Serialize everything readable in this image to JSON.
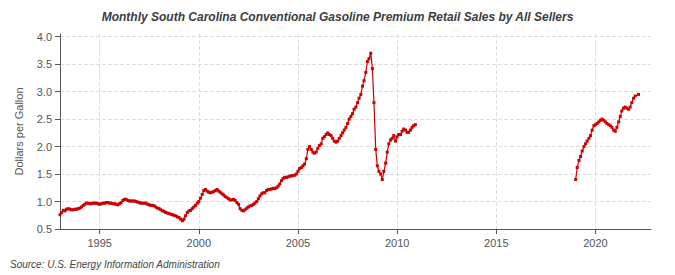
{
  "chart_data": {
    "type": "line",
    "title": "Monthly South Carolina Conventional Gasoline Premium Retail Sales by All Sellers",
    "ylabel": "Dollars per Gallon",
    "annotation": "Source: U.S. Energy Information Administration",
    "color": "#cc0000",
    "marker": "square",
    "line_style": "solid",
    "grid": true,
    "xlim": [
      1993.0,
      2022.8
    ],
    "xticks": [
      1995,
      2000,
      2005,
      2010,
      2015,
      2020
    ],
    "ylim": [
      0.5,
      4.05
    ],
    "yticks": [
      0.5,
      {
        "value": 1.0,
        "label": "1.0"
      },
      1.5,
      {
        "value": 2.0,
        "label": "2.0"
      },
      2.5,
      {
        "value": 3.0,
        "label": "3.0"
      },
      3.5,
      {
        "value": 4.0,
        "label": "4.0"
      }
    ],
    "series": [
      {
        "x": [
          1993.0,
          1993.08,
          1993.17,
          1993.25,
          1993.33,
          1993.42,
          1993.5,
          1993.58,
          1993.67,
          1993.75,
          1993.83,
          1993.92,
          1994.0,
          1994.08,
          1994.17,
          1994.25,
          1994.33,
          1994.42,
          1994.5,
          1994.58,
          1994.67,
          1994.75,
          1994.83,
          1994.92,
          1995.0,
          1995.08,
          1995.17,
          1995.25,
          1995.33,
          1995.42,
          1995.5,
          1995.58,
          1995.67,
          1995.75,
          1995.83,
          1995.92,
          1996.0,
          1996.08,
          1996.17,
          1996.25,
          1996.33,
          1996.42,
          1996.5,
          1996.58,
          1996.67,
          1996.75,
          1996.83,
          1996.92,
          1997.0,
          1997.08,
          1997.17,
          1997.25,
          1997.33,
          1997.42,
          1997.5,
          1997.58,
          1997.67,
          1997.75,
          1997.83,
          1997.92,
          1998.0,
          1998.08,
          1998.17,
          1998.25,
          1998.33,
          1998.42,
          1998.5,
          1998.58,
          1998.67,
          1998.75,
          1998.83,
          1998.92,
          1999.0,
          1999.08,
          1999.17,
          1999.25,
          1999.33,
          1999.42,
          1999.5,
          1999.58,
          1999.67,
          1999.75,
          1999.83,
          1999.92,
          2000.0,
          2000.08,
          2000.17,
          2000.25,
          2000.33,
          2000.42,
          2000.5,
          2000.58,
          2000.67,
          2000.75,
          2000.83,
          2000.92,
          2001.0,
          2001.08,
          2001.17,
          2001.25,
          2001.33,
          2001.42,
          2001.5,
          2001.58,
          2001.67,
          2001.75,
          2001.83,
          2001.92,
          2002.0,
          2002.08,
          2002.17,
          2002.25,
          2002.33,
          2002.42,
          2002.5,
          2002.58,
          2002.67,
          2002.75,
          2002.83,
          2002.92,
          2003.0,
          2003.08,
          2003.17,
          2003.25,
          2003.33,
          2003.42,
          2003.5,
          2003.58,
          2003.67,
          2003.75,
          2003.83,
          2003.92,
          2004.0,
          2004.08,
          2004.17,
          2004.25,
          2004.33,
          2004.42,
          2004.5,
          2004.58,
          2004.67,
          2004.75,
          2004.83,
          2004.92,
          2005.0,
          2005.08,
          2005.17,
          2005.25,
          2005.33,
          2005.42,
          2005.5,
          2005.58,
          2005.67,
          2005.75,
          2005.83,
          2005.92,
          2006.0,
          2006.08,
          2006.17,
          2006.25,
          2006.33,
          2006.42,
          2006.5,
          2006.58,
          2006.67,
          2006.75,
          2006.83,
          2006.92,
          2007.0,
          2007.08,
          2007.17,
          2007.25,
          2007.33,
          2007.42,
          2007.5,
          2007.58,
          2007.67,
          2007.75,
          2007.83,
          2007.92,
          2008.0,
          2008.08,
          2008.17,
          2008.25,
          2008.33,
          2008.42,
          2008.5,
          2008.58,
          2008.67,
          2008.75,
          2008.83,
          2008.92,
          2009.0,
          2009.08,
          2009.17,
          2009.25,
          2009.33,
          2009.42,
          2009.5,
          2009.58,
          2009.67,
          2009.75,
          2009.83,
          2009.92,
          2010.0,
          2010.08,
          2010.17,
          2010.25,
          2010.33,
          2010.42,
          2010.5,
          2010.58,
          2010.67,
          2010.75,
          2010.83,
          2010.92
        ],
        "values": [
          0.76,
          0.8,
          0.84,
          0.83,
          0.86,
          0.87,
          0.86,
          0.85,
          0.85,
          0.86,
          0.86,
          0.87,
          0.88,
          0.9,
          0.93,
          0.95,
          0.97,
          0.97,
          0.96,
          0.96,
          0.97,
          0.97,
          0.97,
          0.96,
          0.95,
          0.96,
          0.97,
          0.97,
          0.98,
          0.98,
          0.97,
          0.97,
          0.96,
          0.96,
          0.95,
          0.94,
          0.96,
          0.98,
          1.02,
          1.04,
          1.04,
          1.02,
          1.01,
          1.01,
          1.01,
          1.01,
          1.0,
          0.99,
          0.98,
          0.97,
          0.97,
          0.97,
          0.97,
          0.95,
          0.94,
          0.93,
          0.93,
          0.92,
          0.9,
          0.88,
          0.87,
          0.85,
          0.83,
          0.82,
          0.8,
          0.79,
          0.78,
          0.77,
          0.76,
          0.75,
          0.74,
          0.72,
          0.71,
          0.68,
          0.65,
          0.68,
          0.74,
          0.8,
          0.83,
          0.84,
          0.87,
          0.9,
          0.93,
          0.97,
          1.0,
          1.06,
          1.13,
          1.2,
          1.22,
          1.19,
          1.17,
          1.16,
          1.17,
          1.18,
          1.2,
          1.22,
          1.19,
          1.17,
          1.14,
          1.12,
          1.09,
          1.07,
          1.05,
          1.03,
          1.03,
          1.04,
          1.02,
          0.98,
          0.95,
          0.87,
          0.84,
          0.83,
          0.85,
          0.88,
          0.9,
          0.92,
          0.93,
          0.95,
          0.97,
          1.0,
          1.05,
          1.1,
          1.14,
          1.16,
          1.16,
          1.2,
          1.22,
          1.22,
          1.23,
          1.24,
          1.24,
          1.25,
          1.28,
          1.32,
          1.38,
          1.42,
          1.44,
          1.44,
          1.45,
          1.46,
          1.47,
          1.47,
          1.48,
          1.5,
          1.55,
          1.6,
          1.62,
          1.65,
          1.68,
          1.78,
          1.95,
          2.0,
          1.95,
          1.9,
          1.88,
          1.9,
          1.97,
          2.02,
          2.05,
          2.15,
          2.18,
          2.22,
          2.25,
          2.22,
          2.2,
          2.15,
          2.1,
          2.08,
          2.1,
          2.15,
          2.2,
          2.25,
          2.3,
          2.35,
          2.42,
          2.5,
          2.55,
          2.6,
          2.68,
          2.72,
          2.8,
          2.88,
          2.95,
          3.1,
          3.2,
          3.35,
          3.55,
          3.6,
          3.7,
          3.42,
          2.8,
          1.95,
          1.65,
          1.55,
          1.5,
          1.4,
          1.55,
          1.7,
          1.9,
          2.05,
          2.12,
          2.15,
          2.2,
          2.1,
          2.18,
          2.22,
          2.22,
          2.28,
          2.32,
          2.3,
          2.26,
          2.26,
          2.3,
          2.35,
          2.38,
          2.4
        ]
      },
      {
        "x": [
          2019.0,
          2019.08,
          2019.17,
          2019.25,
          2019.33,
          2019.42,
          2019.5,
          2019.58,
          2019.67,
          2019.75,
          2019.83,
          2019.92,
          2020.0,
          2020.08,
          2020.17,
          2020.25,
          2020.33,
          2020.42,
          2020.5,
          2020.58,
          2020.67,
          2020.75,
          2020.83,
          2020.92,
          2021.0,
          2021.08,
          2021.17,
          2021.25,
          2021.33,
          2021.42,
          2021.5,
          2021.58,
          2021.67,
          2021.75,
          2021.83,
          2021.92,
          2022.0,
          2022.17
        ],
        "values": [
          1.4,
          1.62,
          1.75,
          1.82,
          1.92,
          2.0,
          2.05,
          2.1,
          2.15,
          2.2,
          2.3,
          2.38,
          2.4,
          2.42,
          2.45,
          2.48,
          2.5,
          2.48,
          2.45,
          2.42,
          2.4,
          2.38,
          2.35,
          2.3,
          2.28,
          2.35,
          2.45,
          2.55,
          2.65,
          2.7,
          2.72,
          2.7,
          2.68,
          2.72,
          2.8,
          2.88,
          2.92,
          2.95
        ]
      }
    ]
  }
}
